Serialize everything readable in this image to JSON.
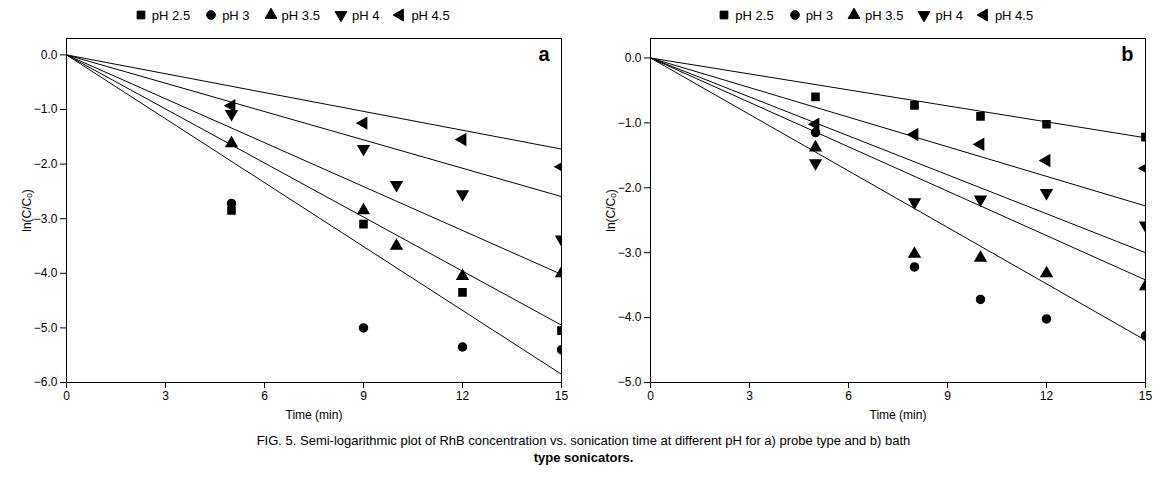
{
  "caption": [
    "FIG. 5. Semi-logarithmic plot of RhB concentration vs. sonication time at different pH for a) probe type and b) bath",
    "type sonicators."
  ],
  "chart_data": [
    {
      "type": "scatter",
      "annotation": "a",
      "xlabel": "Time (min)",
      "ylabel": "ln(C/Cₒ)",
      "xlim": [
        0,
        15
      ],
      "ylim": [
        -6,
        0.3
      ],
      "xticks": [
        0,
        3,
        6,
        9,
        12,
        15
      ],
      "yticks": [
        0,
        -1,
        -2,
        -3,
        -4,
        -5,
        -6
      ],
      "color": "black",
      "legend": "top",
      "series": [
        {
          "name": "pH 2.5",
          "marker": "square",
          "slope": -0.33,
          "x": [
            5,
            9,
            12,
            15
          ],
          "values": [
            -2.85,
            -3.1,
            -4.35,
            -5.05
          ]
        },
        {
          "name": "pH 3",
          "marker": "circle",
          "slope": -0.39,
          "x": [
            5,
            9,
            12,
            15
          ],
          "values": [
            -2.72,
            -5.0,
            -5.35,
            -5.4
          ]
        },
        {
          "name": "pH 3.5",
          "marker": "triangle-up",
          "slope": -0.268,
          "x": [
            5,
            9,
            10,
            12,
            15
          ],
          "values": [
            -1.62,
            -2.85,
            -3.5,
            -4.05,
            -4.0
          ]
        },
        {
          "name": "pH 4",
          "marker": "triangle-down",
          "slope": -0.173,
          "x": [
            5,
            9,
            10,
            12,
            15
          ],
          "values": [
            -1.08,
            -1.72,
            -2.38,
            -2.55,
            -3.38
          ]
        },
        {
          "name": "pH 4.5",
          "marker": "triangle-left",
          "slope": -0.115,
          "x": [
            5,
            9,
            12,
            15
          ],
          "values": [
            -0.93,
            -1.25,
            -1.55,
            -2.05
          ]
        }
      ]
    },
    {
      "type": "scatter",
      "annotation": "b",
      "xlabel": "Time (min)",
      "ylabel": "ln(C/Cₒ)",
      "xlim": [
        0,
        15
      ],
      "ylim": [
        -5,
        0.3
      ],
      "xticks": [
        0,
        3,
        6,
        9,
        12,
        15
      ],
      "yticks": [
        0,
        -1,
        -2,
        -3,
        -4,
        -5
      ],
      "color": "black",
      "legend": "top",
      "series": [
        {
          "name": "pH 2.5",
          "marker": "square",
          "slope": -0.082,
          "x": [
            5,
            8,
            10,
            12,
            15
          ],
          "values": [
            -0.6,
            -0.73,
            -0.9,
            -1.02,
            -1.22
          ]
        },
        {
          "name": "pH 3",
          "marker": "circle",
          "slope": -0.29,
          "x": [
            5,
            8,
            10,
            12,
            15
          ],
          "values": [
            -1.15,
            -3.22,
            -3.72,
            -4.02,
            -4.28
          ]
        },
        {
          "name": "pH 3.5",
          "marker": "triangle-up",
          "slope": -0.2,
          "x": [
            5,
            8,
            10,
            12,
            15
          ],
          "values": [
            -1.38,
            -3.02,
            -3.08,
            -3.32,
            -3.52
          ]
        },
        {
          "name": "pH 4",
          "marker": "triangle-down",
          "slope": -0.228,
          "x": [
            5,
            8,
            10,
            12,
            15
          ],
          "values": [
            -1.62,
            -2.22,
            -2.18,
            -2.08,
            -2.58
          ]
        },
        {
          "name": "pH 4.5",
          "marker": "triangle-left",
          "slope": -0.152,
          "x": [
            5,
            8,
            10,
            12,
            15
          ],
          "values": [
            -1.02,
            -1.18,
            -1.33,
            -1.58,
            -1.7
          ]
        }
      ]
    }
  ]
}
